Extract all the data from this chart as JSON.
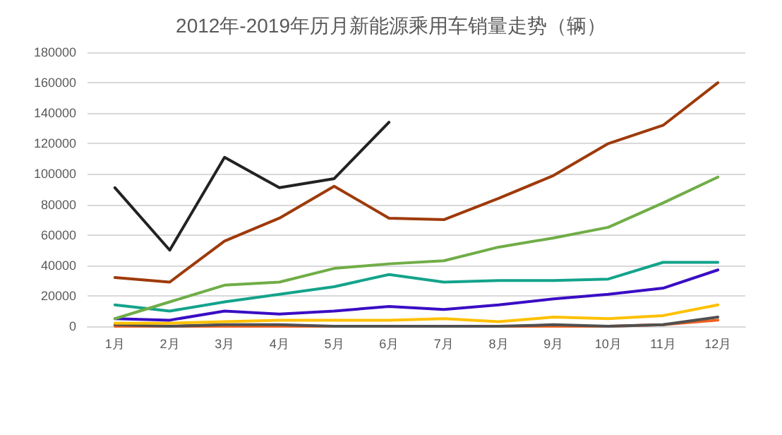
{
  "chart_data": {
    "type": "line",
    "title": "2012年-2019年历月新能源乘用车销量走势（辆）",
    "categories": [
      "1月",
      "2月",
      "3月",
      "4月",
      "5月",
      "6月",
      "7月",
      "8月",
      "9月",
      "10月",
      "11月",
      "12月"
    ],
    "series": [
      {
        "color": "#f06020",
        "values": [
          0,
          0,
          0,
          0,
          0,
          0,
          0,
          0,
          0,
          0,
          1000,
          4000
        ]
      },
      {
        "color": "#505050",
        "values": [
          1000,
          0,
          1000,
          1000,
          0,
          0,
          0,
          0,
          1000,
          0,
          1000,
          6000
        ]
      },
      {
        "color": "#ffc000",
        "values": [
          2000,
          2000,
          3000,
          4000,
          4000,
          4000,
          5000,
          3000,
          6000,
          5000,
          7000,
          14000
        ]
      },
      {
        "color": "#3a0dc4",
        "values": [
          5000,
          4000,
          10000,
          8000,
          10000,
          13000,
          11000,
          14000,
          18000,
          21000,
          25000,
          37000
        ]
      },
      {
        "color": "#13a38b",
        "values": [
          14000,
          10000,
          16000,
          21000,
          26000,
          34000,
          29000,
          30000,
          30000,
          31000,
          42000,
          42000
        ]
      },
      {
        "color": "#70ad47",
        "values": [
          5000,
          16000,
          27000,
          29000,
          38000,
          41000,
          43000,
          52000,
          58000,
          65000,
          81000,
          98000
        ]
      },
      {
        "color": "#9e3a0a",
        "values": [
          32000,
          29000,
          56000,
          71000,
          92000,
          71000,
          70000,
          84000,
          99000,
          120000,
          132000,
          160000
        ]
      },
      {
        "color": "#222222",
        "values": [
          91000,
          50000,
          111000,
          91000,
          97000,
          134000,
          null,
          null,
          null,
          null,
          null,
          null
        ]
      }
    ],
    "ylim": [
      0,
      180000
    ],
    "yticks": [
      0,
      20000,
      40000,
      60000,
      80000,
      100000,
      120000,
      140000,
      160000,
      180000
    ],
    "grid": "y",
    "marker": "none",
    "line_style": "solid"
  }
}
